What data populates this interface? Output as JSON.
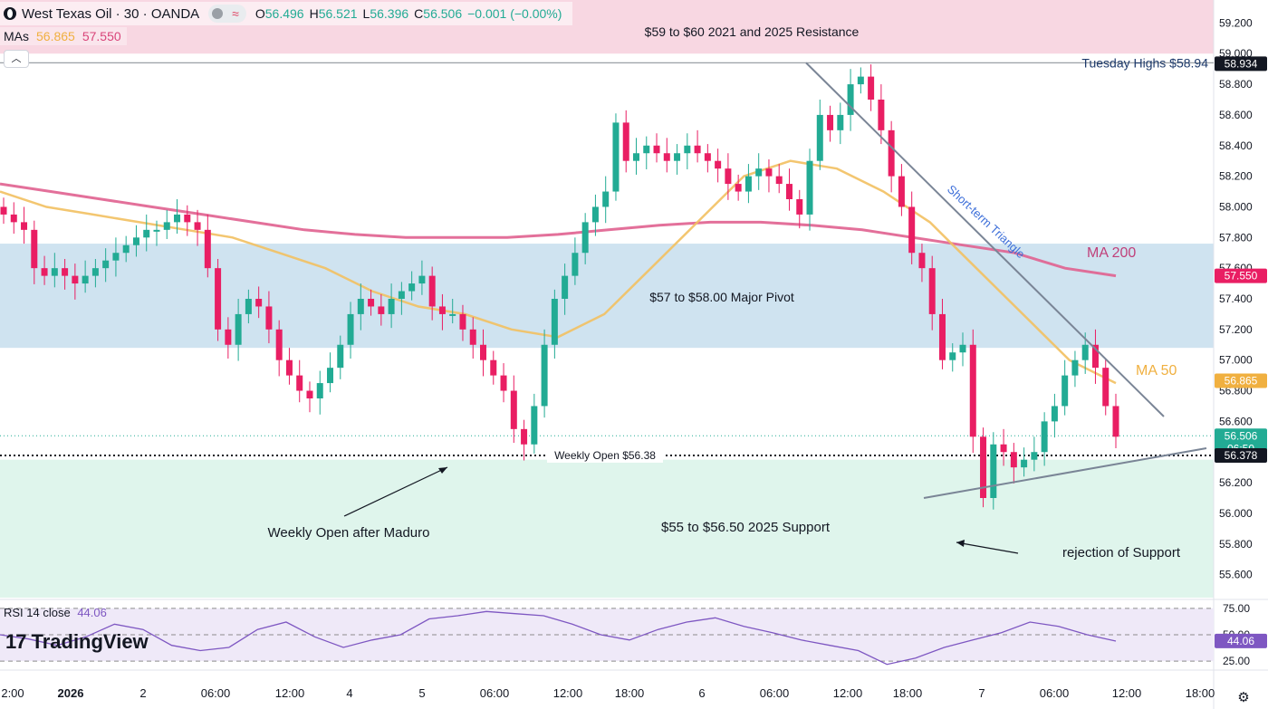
{
  "header": {
    "symbol": "West Texas Oil · 30 · OANDA",
    "o_label": "O",
    "o_value": "56.496",
    "h_label": "H",
    "h_value": "56.521",
    "l_label": "L",
    "l_value": "56.396",
    "c_label": "C",
    "c_value": "56.506",
    "change": "−0.001 (−0.00%)"
  },
  "mas": {
    "label": "MAs",
    "ma50": "56.865",
    "ma200": "57.550"
  },
  "rsi": {
    "label": "RSI 14 close",
    "value": "44.06"
  },
  "branding": "TradingView",
  "colors": {
    "up": "#22ab94",
    "down": "#e91e63",
    "ma50": "#f2c060",
    "ma200": "#e0608f",
    "rsi": "#7e57c2"
  },
  "icons": {
    "collapse": "chevron-up-icon",
    "settings": "gear-icon",
    "logo": "tradingview-logo-icon"
  },
  "chart_data": {
    "type": "candlestick",
    "title": "West Texas Oil · 30 · OANDA",
    "price_axis": [
      "59.200",
      "59.000",
      "58.800",
      "58.600",
      "58.400",
      "58.200",
      "58.000",
      "57.800",
      "57.600",
      "57.400",
      "57.200",
      "57.000",
      "56.800",
      "56.600",
      "56.400",
      "56.200",
      "56.000",
      "55.800",
      "55.600"
    ],
    "rsi_axis": [
      "75.00",
      "50.00",
      "25.00"
    ],
    "time_axis": [
      "2:00",
      "2026",
      "2",
      "06:00",
      "12:00",
      "4",
      "5",
      "06:00",
      "12:00",
      "18:00",
      "6",
      "06:00",
      "12:00",
      "18:00",
      "7",
      "06:00",
      "12:00",
      "18:00"
    ],
    "ylim": [
      55.45,
      59.25
    ],
    "price_labels": [
      {
        "value": 58.934,
        "text": "58.934",
        "bg": "#131722"
      },
      {
        "value": 57.55,
        "text": "57.550",
        "bg": "#e91e63"
      },
      {
        "value": 56.865,
        "text": "56.865",
        "bg": "#f0b040"
      },
      {
        "value": 56.506,
        "text": "56.506",
        "sub": "06:50",
        "bg": "#22ab94"
      },
      {
        "value": 56.378,
        "text": "56.378",
        "bg": "#131722"
      }
    ],
    "rsi_label": {
      "value": 44.06,
      "text": "44.06",
      "bg": "#7e57c2"
    },
    "zones": [
      {
        "from": 59.0,
        "to": 59.35,
        "color": "#f8d7e2",
        "label": "$59 to $60 2021 and 2025 Resistance"
      },
      {
        "from": 57.08,
        "to": 57.76,
        "color": "#cfe3f0",
        "label": "$57 to $58.00 Major Pivot"
      },
      {
        "from": 55.45,
        "to": 56.35,
        "color": "#dff5ec",
        "label": "$55 to $56.50 2025 Support"
      }
    ],
    "annotations": {
      "tuesday_highs": "Tuesday Highs $58.94",
      "weekly_open": "Weekly Open $56.38",
      "weekly_open_after": "Weekly Open after Maduro",
      "rejection": "rejection of Support",
      "triangle": "Short-term Triangle",
      "ma200": "MA 200",
      "ma50": "MA 50"
    },
    "levels": {
      "tuesday_high": 58.94,
      "weekly_open": 56.378
    },
    "close_path": [
      57.95,
      57.9,
      57.85,
      57.6,
      57.55,
      57.6,
      57.55,
      57.5,
      57.55,
      57.6,
      57.65,
      57.7,
      57.75,
      57.8,
      57.85,
      57.85,
      57.9,
      57.95,
      57.9,
      57.85,
      57.6,
      57.2,
      57.1,
      57.3,
      57.4,
      57.35,
      57.2,
      57.0,
      56.9,
      56.8,
      56.75,
      56.85,
      56.95,
      57.1,
      57.3,
      57.4,
      57.35,
      57.3,
      57.4,
      57.45,
      57.5,
      57.55,
      57.35,
      57.3,
      57.3,
      57.2,
      57.1,
      57.0,
      56.9,
      56.8,
      56.55,
      56.45,
      56.7,
      57.1,
      57.4,
      57.55,
      57.7,
      57.9,
      58.0,
      58.1,
      58.55,
      58.3,
      58.35,
      58.4,
      58.35,
      58.3,
      58.35,
      58.4,
      58.35,
      58.3,
      58.25,
      58.15,
      58.1,
      58.2,
      58.25,
      58.2,
      58.15,
      58.05,
      57.95,
      58.3,
      58.6,
      58.5,
      58.6,
      58.8,
      58.85,
      58.7,
      58.5,
      58.2,
      58.0,
      57.7,
      57.6,
      57.3,
      57.0,
      57.05,
      57.1,
      56.5,
      56.1,
      56.45,
      56.4,
      56.3,
      56.35,
      56.4,
      56.6,
      56.7,
      56.9,
      57.0,
      57.1,
      56.95,
      56.7,
      56.5
    ],
    "ma50_path": [
      58.1,
      58.0,
      57.95,
      57.9,
      57.85,
      57.8,
      57.7,
      57.6,
      57.45,
      57.35,
      57.3,
      57.2,
      57.15,
      57.3,
      57.6,
      57.9,
      58.2,
      58.3,
      58.25,
      58.1,
      57.9,
      57.6,
      57.3,
      57.0,
      56.85
    ],
    "ma200_path": [
      58.15,
      58.1,
      58.05,
      58.0,
      57.95,
      57.9,
      57.85,
      57.82,
      57.8,
      57.8,
      57.8,
      57.82,
      57.85,
      57.88,
      57.9,
      57.9,
      57.88,
      57.85,
      57.8,
      57.75,
      57.7,
      57.6,
      57.55
    ],
    "rsi_path": [
      50,
      46,
      40,
      48,
      60,
      55,
      40,
      35,
      38,
      55,
      62,
      48,
      38,
      45,
      50,
      65,
      68,
      72,
      70,
      68,
      60,
      50,
      45,
      55,
      62,
      66,
      58,
      52,
      45,
      40,
      35,
      22,
      28,
      38,
      45,
      52,
      62,
      58,
      50,
      44
    ]
  }
}
